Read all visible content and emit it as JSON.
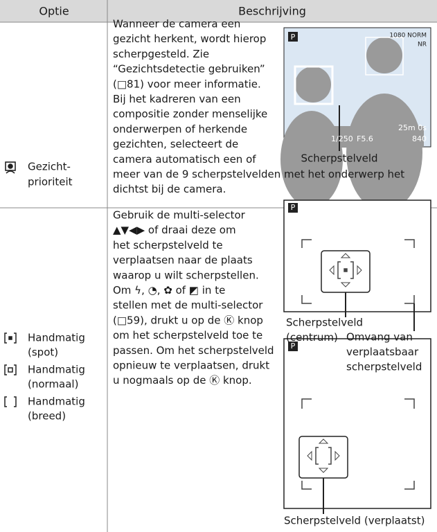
{
  "header": {
    "option": "Optie",
    "description": "Beschrijving"
  },
  "rows": [
    {
      "option_lines": [
        "Gezicht-",
        "prioriteit"
      ],
      "description_lines": [
        "Wanneer de camera een",
        "gezicht herkent, wordt hierop",
        "scherpgesteld. Zie",
        "“Gezichtsdetectie gebruiken”",
        "(□81) voor meer informatie.",
        "Bij het kadreren van een",
        "compositie zonder menselijke",
        "onderwerpen of herkende",
        "gezichten, selecteert de",
        "camera automatisch een of",
        "meer van de 9 scherpstelvelden met het onderwerp het",
        "dichtst bij de camera."
      ],
      "figure": {
        "mode": "P",
        "status_top": "1080 NORM",
        "status_nr": "NR",
        "shutter": "1/250",
        "aperture": "F5.6",
        "time": "25m 0s",
        "shots": "840",
        "caption": "Scherpstelveld"
      }
    },
    {
      "options": [
        [
          "Handmatig",
          "(spot)"
        ],
        [
          "Handmatig",
          "(normaal)"
        ],
        [
          "Handmatig",
          "(breed)"
        ]
      ],
      "description_lines": [
        "Gebruik de multi-selector",
        "▲▼◀▶ of draai deze om",
        "het scherpstelveld te",
        "verplaatsen naar de plaats",
        "waarop u wilt scherpstellen.",
        "Om ϟ, ◔, ✿ of ◩ in te",
        "stellen met de multi-selector",
        "(□59), drukt u op de Ⓚ knop",
        "om het scherpstelveld toe te",
        "passen. Om het scherpstelveld",
        "opnieuw te verplaatsen, drukt",
        "u nogmaals op de Ⓚ knop."
      ],
      "figures": [
        {
          "mode": "P",
          "captions": [
            [
              "Scherpstelveld",
              "(centrum)"
            ],
            [
              "Omvang van",
              "verplaatsbaar",
              "scherpstelveld"
            ]
          ]
        },
        {
          "mode": "P",
          "captions": [
            [
              "Scherpstelveld (verplaatst)"
            ]
          ]
        }
      ]
    }
  ]
}
